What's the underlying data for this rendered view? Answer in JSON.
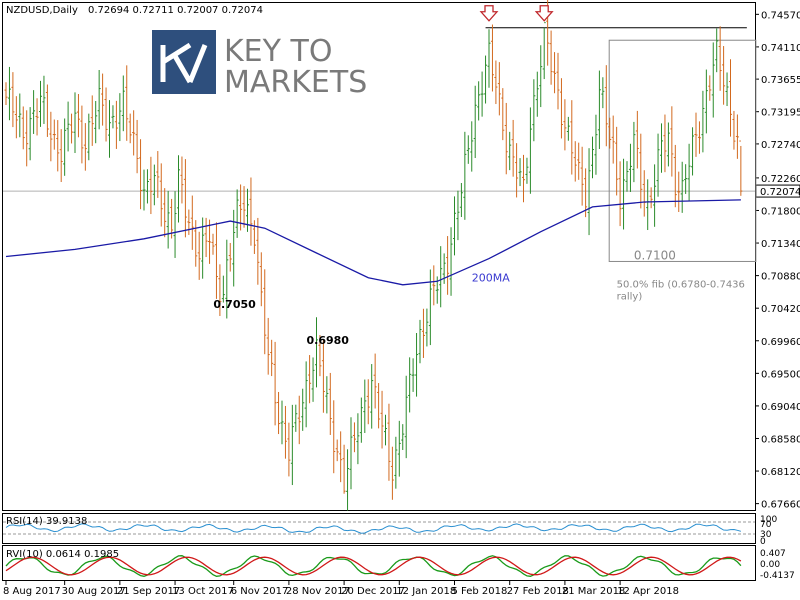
{
  "chart_data": {
    "type": "ohlc",
    "symbol": "NZDUSD,Daily",
    "ohlc_header": "0.72694 0.72711 0.72007 0.72074",
    "last_price": 0.72074,
    "last_price_label": "0.72074",
    "ylim": [
      0.6757,
      0.7473
    ],
    "y_ticks": [
      "0.74570",
      "0.74110",
      "0.73655",
      "0.73195",
      "0.72740",
      "0.72260",
      "0.71800",
      "0.71340",
      "0.70880",
      "0.70420",
      "0.69960",
      "0.69500",
      "0.69040",
      "0.68580",
      "0.68120",
      "0.67660"
    ],
    "x_ticks": [
      "8 Aug 2017",
      "30 Aug 2017",
      "21 Sep 2017",
      "13 Oct 2017",
      "6 Nov 2017",
      "28 Nov 2017",
      "20 Dec 2017",
      "12 Jan 2018",
      "5 Feb 2018",
      "27 Feb 2018",
      "21 Mar 2018",
      "12 Apr 2018"
    ],
    "price_path": [
      [
        0,
        0.734
      ],
      [
        5,
        0.729
      ],
      [
        10,
        0.733
      ],
      [
        14,
        0.728
      ],
      [
        16,
        0.7265
      ],
      [
        20,
        0.731
      ],
      [
        23,
        0.728
      ],
      [
        27,
        0.733
      ],
      [
        30,
        0.7305
      ],
      [
        34,
        0.7325
      ],
      [
        38,
        0.726
      ],
      [
        40,
        0.7205
      ],
      [
        43,
        0.722
      ],
      [
        46,
        0.718
      ],
      [
        48,
        0.716
      ],
      [
        50,
        0.722
      ],
      [
        53,
        0.716
      ],
      [
        56,
        0.7125
      ],
      [
        59,
        0.714
      ],
      [
        61,
        0.708
      ],
      [
        63,
        0.7065
      ],
      [
        64,
        0.7105
      ],
      [
        67,
        0.717
      ],
      [
        69,
        0.719
      ],
      [
        72,
        0.7155
      ],
      [
        74,
        0.705
      ],
      [
        76,
        0.697
      ],
      [
        78,
        0.692
      ],
      [
        80,
        0.6875
      ],
      [
        82,
        0.684
      ],
      [
        84,
        0.6875
      ],
      [
        86,
        0.691
      ],
      [
        88,
        0.6955
      ],
      [
        90,
        0.698
      ],
      [
        92,
        0.693
      ],
      [
        94,
        0.688
      ],
      [
        96,
        0.6845
      ],
      [
        98,
        0.6795
      ],
      [
        100,
        0.6835
      ],
      [
        102,
        0.6875
      ],
      [
        104,
        0.6915
      ],
      [
        106,
        0.6935
      ],
      [
        108,
        0.689
      ],
      [
        110,
        0.6855
      ],
      [
        112,
        0.682
      ],
      [
        114,
        0.685
      ],
      [
        116,
        0.69
      ],
      [
        118,
        0.696
      ],
      [
        120,
        0.7005
      ],
      [
        122,
        0.7035
      ],
      [
        124,
        0.7065
      ],
      [
        126,
        0.7085
      ],
      [
        128,
        0.7115
      ],
      [
        130,
        0.7165
      ],
      [
        132,
        0.7205
      ],
      [
        134,
        0.7265
      ],
      [
        136,
        0.7325
      ],
      [
        138,
        0.7365
      ],
      [
        140,
        0.7395
      ],
      [
        142,
        0.7355
      ],
      [
        144,
        0.7305
      ],
      [
        146,
        0.7265
      ],
      [
        148,
        0.7235
      ],
      [
        150,
        0.7205
      ],
      [
        152,
        0.7305
      ],
      [
        154,
        0.7365
      ],
      [
        156,
        0.7425
      ],
      [
        158,
        0.7385
      ],
      [
        160,
        0.7345
      ],
      [
        162,
        0.7305
      ],
      [
        164,
        0.7265
      ],
      [
        166,
        0.7225
      ],
      [
        168,
        0.7205
      ],
      [
        170,
        0.7265
      ],
      [
        172,
        0.7345
      ],
      [
        174,
        0.7305
      ],
      [
        176,
        0.7265
      ],
      [
        178,
        0.7205
      ],
      [
        180,
        0.7225
      ],
      [
        182,
        0.7275
      ],
      [
        184,
        0.7225
      ],
      [
        186,
        0.7185
      ],
      [
        188,
        0.7225
      ],
      [
        190,
        0.7265
      ],
      [
        192,
        0.7285
      ],
      [
        194,
        0.7225
      ],
      [
        196,
        0.7205
      ],
      [
        198,
        0.7245
      ],
      [
        200,
        0.7285
      ],
      [
        202,
        0.7325
      ],
      [
        204,
        0.7365
      ],
      [
        206,
        0.7395
      ],
      [
        208,
        0.7365
      ],
      [
        210,
        0.7325
      ],
      [
        212,
        0.7275
      ],
      [
        213,
        0.72074
      ]
    ],
    "ma200": {
      "label": "200MA",
      "values": [
        [
          0,
          0.7115
        ],
        [
          20,
          0.7125
        ],
        [
          40,
          0.714
        ],
        [
          60,
          0.716
        ],
        [
          65,
          0.7165
        ],
        [
          75,
          0.7155
        ],
        [
          90,
          0.712
        ],
        [
          105,
          0.7085
        ],
        [
          115,
          0.7075
        ],
        [
          125,
          0.708
        ],
        [
          140,
          0.7112
        ],
        [
          155,
          0.715
        ],
        [
          170,
          0.7185
        ],
        [
          185,
          0.7192
        ],
        [
          213,
          0.7195
        ]
      ]
    },
    "annotations": [
      {
        "label": "0.7050",
        "bar": 63,
        "price": 0.7065
      },
      {
        "label": "0.6980",
        "bar": 90,
        "price": 0.698
      }
    ],
    "resistance": {
      "price": 0.7438,
      "from_bar": 139,
      "to_bar": 213
    },
    "tops": [
      {
        "bar": 140,
        "price": 0.7395
      },
      {
        "bar": 156,
        "price": 0.7425
      }
    ],
    "fib_box": {
      "label": "0.7100",
      "note_lines": [
        "50.0% fib (0.6780-0.7436",
        "rally)"
      ],
      "from_bar": 176,
      "to_bar": 213,
      "price_top": 0.7395,
      "price_bottom": 0.7108
    },
    "rsi": {
      "label": "RSI(14) 39.9138",
      "ylim": [
        0,
        100
      ],
      "levels": [
        70,
        30
      ],
      "tick_labels": [
        "100",
        "70",
        "30",
        "0"
      ]
    },
    "rvi": {
      "label": "RVI(10) 0.0614 0.1985",
      "tick_labels": [
        "0.407",
        "0.00",
        "-0.4137"
      ]
    },
    "logo": {
      "line1": "KEY TO",
      "line2": "MARKETS"
    }
  }
}
